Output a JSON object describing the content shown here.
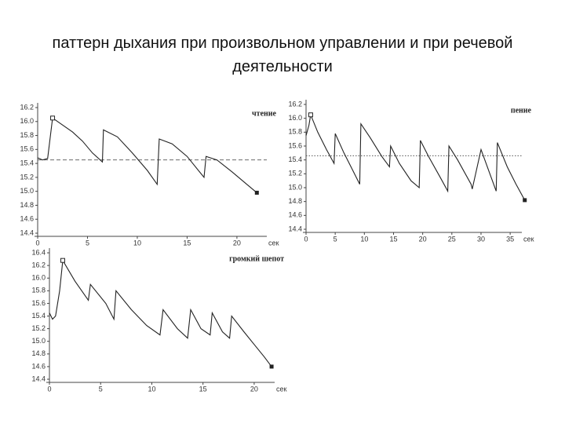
{
  "title": "паттерн дыхания при произвольном управлении и при речевой деятельности",
  "chart_data": [
    {
      "type": "line",
      "title": "чтение",
      "xlabel": "сек",
      "color": "#222",
      "x": [
        0,
        0.5,
        1,
        1.2,
        1.5,
        2.5,
        3.5,
        4.5,
        5.5,
        6.5,
        6.6,
        8,
        9.5,
        11,
        12,
        12.2,
        13.5,
        15,
        16.7,
        16.9,
        18,
        19.5,
        21,
        22
      ],
      "values": [
        15.48,
        15.45,
        15.47,
        15.7,
        16.05,
        15.95,
        15.85,
        15.72,
        15.55,
        15.42,
        15.88,
        15.78,
        15.55,
        15.3,
        15.1,
        15.75,
        15.68,
        15.5,
        15.2,
        15.5,
        15.45,
        15.28,
        15.1,
        14.98
      ],
      "reference_line": 15.45,
      "xlim": [
        0,
        23
      ],
      "ylim": [
        14.4,
        16.2
      ],
      "xticks": [
        0,
        5,
        10,
        15,
        20
      ],
      "yticks": [
        14.4,
        14.6,
        14.8,
        {
          "value": 15,
          "label": "15.0"
        },
        15.2,
        15.4,
        15.6,
        15.8,
        {
          "value": 16,
          "label": "16.0"
        },
        16.2
      ]
    },
    {
      "type": "line",
      "title": "пение",
      "xlabel": "сек",
      "color": "#222",
      "x": [
        0,
        0.5,
        0.8,
        2,
        3.5,
        4.8,
        5,
        6.5,
        8,
        9.2,
        9.4,
        11,
        13,
        14.3,
        14.5,
        16,
        18,
        19.4,
        19.6,
        21,
        23,
        24.3,
        24.5,
        26,
        28.3,
        28.5,
        30,
        32.6,
        32.8,
        34.5,
        36,
        37.5
      ],
      "values": [
        15.75,
        15.9,
        16.05,
        15.8,
        15.55,
        15.35,
        15.78,
        15.5,
        15.25,
        15.05,
        15.92,
        15.72,
        15.45,
        15.3,
        15.6,
        15.35,
        15.1,
        15.0,
        15.68,
        15.45,
        15.15,
        14.95,
        15.6,
        15.4,
        15.05,
        14.98,
        15.55,
        14.95,
        15.65,
        15.3,
        15.05,
        14.82
      ],
      "reference_line": 15.46,
      "xlim": [
        0,
        37
      ],
      "ylim": [
        14.4,
        16.2
      ],
      "xticks": [
        0,
        5,
        10,
        15,
        20,
        25,
        30,
        35
      ],
      "yticks": [
        14.4,
        14.6,
        14.8,
        {
          "value": 15,
          "label": "15.0"
        },
        15.2,
        15.4,
        15.6,
        15.8,
        {
          "value": 16,
          "label": "16.0"
        },
        16.2
      ]
    },
    {
      "type": "line",
      "title": "громкий шепот",
      "xlabel": "сек",
      "color": "#222",
      "x": [
        0,
        0.3,
        0.6,
        1,
        1.3,
        2.5,
        3.8,
        4,
        5.5,
        6.3,
        6.5,
        8,
        9.5,
        10.8,
        11.1,
        12.5,
        13.5,
        13.8,
        14.8,
        15.7,
        15.9,
        16.9,
        17.6,
        17.8,
        19,
        20,
        21,
        21.7
      ],
      "values": [
        15.45,
        15.35,
        15.4,
        15.8,
        16.28,
        15.95,
        15.65,
        15.9,
        15.6,
        15.35,
        15.8,
        15.5,
        15.25,
        15.1,
        15.5,
        15.2,
        15.05,
        15.5,
        15.2,
        15.1,
        15.45,
        15.15,
        15.05,
        15.4,
        15.15,
        14.95,
        14.75,
        14.6
      ],
      "xlim": [
        0,
        22
      ],
      "ylim": [
        14.4,
        16.4
      ],
      "xticks": [
        0,
        5,
        10,
        15,
        20
      ],
      "yticks": [
        14.4,
        14.6,
        14.8,
        {
          "value": 15,
          "label": "15.0"
        },
        15.2,
        15.4,
        15.6,
        15.8,
        {
          "value": 16,
          "label": "16.0"
        },
        16.2,
        16.4
      ]
    }
  ]
}
